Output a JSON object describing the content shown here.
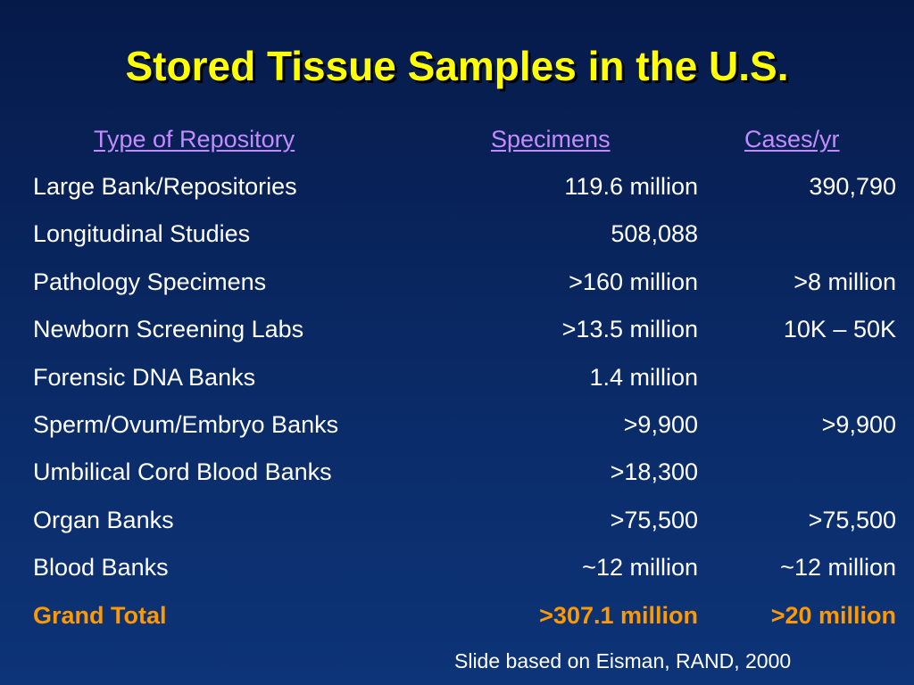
{
  "title": "Stored Tissue Samples in the U.S.",
  "table": {
    "headers": {
      "type": "Type of Repository",
      "specimens": "Specimens",
      "cases": "Cases/yr"
    },
    "rows": [
      {
        "type": "Large Bank/Repositories",
        "specimens": "119.6 million",
        "cases": "390,790"
      },
      {
        "type": "Longitudinal Studies",
        "specimens": "508,088",
        "cases": ""
      },
      {
        "type": "Pathology Specimens",
        "specimens": ">160 million",
        "cases": ">8 million"
      },
      {
        "type": "Newborn Screening Labs",
        "specimens": ">13.5 million",
        "cases": "10K – 50K"
      },
      {
        "type": "Forensic DNA Banks",
        "specimens": "1.4 million",
        "cases": ""
      },
      {
        "type": "Sperm/Ovum/Embryo Banks",
        "specimens": ">9,900",
        "cases": ">9,900"
      },
      {
        "type": "Umbilical Cord Blood Banks",
        "specimens": ">18,300",
        "cases": ""
      },
      {
        "type": "Organ Banks",
        "specimens": ">75,500",
        "cases": ">75,500"
      },
      {
        "type": "Blood Banks",
        "specimens": "~12 million",
        "cases": "~12 million"
      }
    ],
    "total": {
      "type": "Grand Total",
      "specimens": ">307.1 million",
      "cases": ">20 million"
    }
  },
  "source": "Slide based on Eisman, RAND, 2000",
  "colors": {
    "background": "#0a2a66",
    "title": "#ffff00",
    "header": "#c48bff",
    "total": "#ff9900",
    "text": "#ffffff"
  }
}
